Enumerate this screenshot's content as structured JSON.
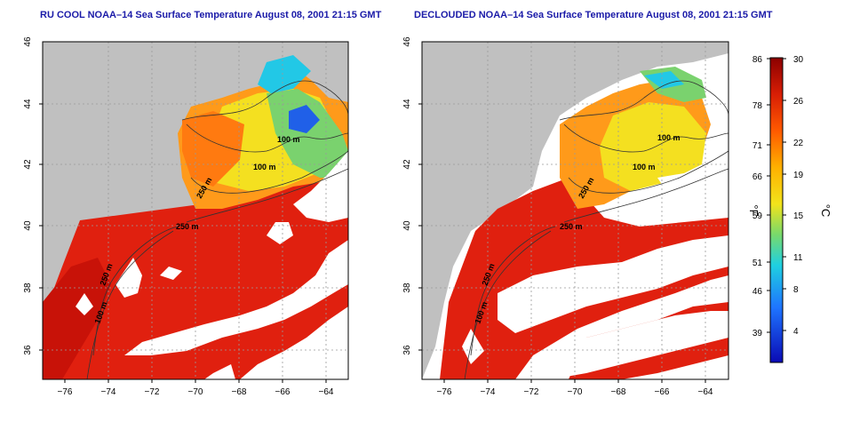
{
  "left_panel": {
    "title": "RU COOL NOAA–14 Sea Surface Temperature August 08, 2001 21:15 GMT",
    "contour_labels": [
      "100 m",
      "100 m",
      "250 m",
      "250 m",
      "250 m",
      "100 m"
    ]
  },
  "right_panel": {
    "title": "DECLOUDED NOAA–14 Sea Surface Temperature August 08, 2001 21:15 GMT",
    "contour_labels": [
      "100 m",
      "100 m",
      "250 m",
      "250 m",
      "250 m",
      "100 m"
    ]
  },
  "lat_ticks": [
    "46",
    "44",
    "42",
    "40",
    "38",
    "36"
  ],
  "lon_ticks": [
    "−76",
    "−74",
    "−72",
    "−70",
    "−68",
    "−66",
    "−64"
  ],
  "colorbar": {
    "f_label": "°F",
    "c_label": "°C",
    "f_ticks": [
      "86",
      "78",
      "71",
      "66",
      "59",
      "51",
      "46",
      "39"
    ],
    "c_ticks": [
      "30",
      "26",
      "22",
      "19",
      "15",
      "11",
      "8",
      "4"
    ],
    "colors": [
      "#8b0000",
      "#d81e05",
      "#ff6a00",
      "#ffb000",
      "#f2e31b",
      "#78d96b",
      "#1fd0e0",
      "#1e74ff",
      "#0a0ab4"
    ]
  },
  "colors": {
    "land": "#c0c0c0",
    "cloud": "#ffffff",
    "warm_ocean": "#e0200f",
    "cool_shelf": "#ff9a1a",
    "title": "#1a1aa8"
  }
}
